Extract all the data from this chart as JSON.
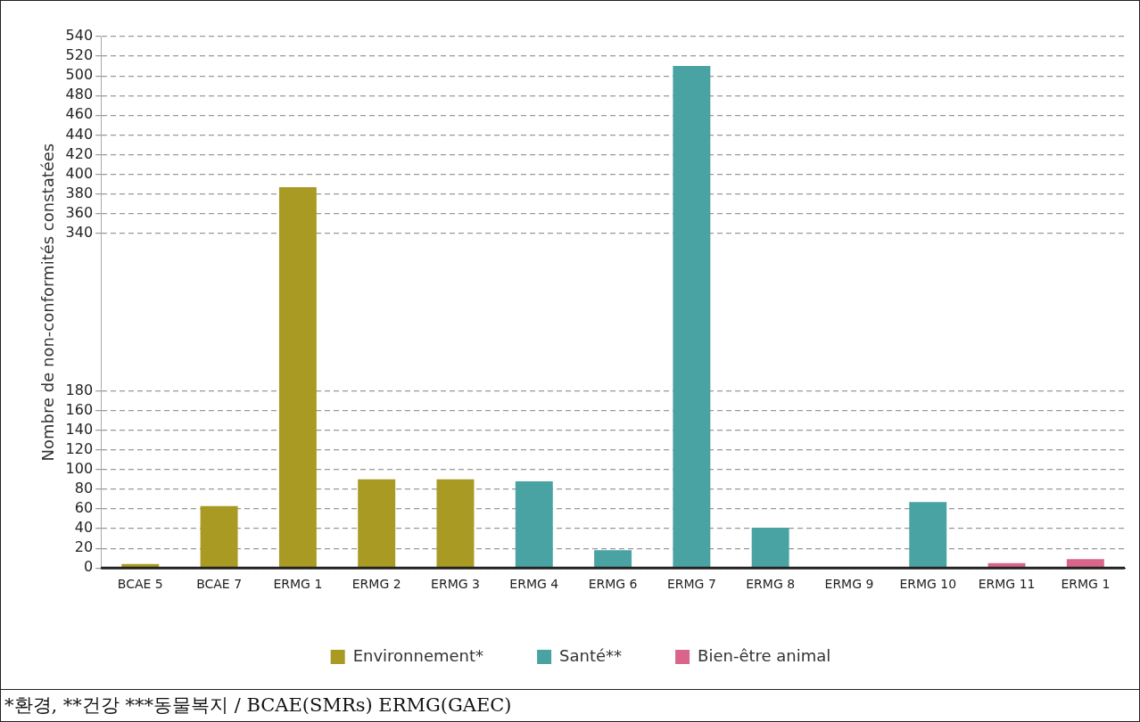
{
  "chart_data": {
    "type": "bar",
    "ylabel": "Nombre de non-conformités constatées",
    "categories": [
      "BCAE 5",
      "BCAE 7",
      "ERMG 1",
      "ERMG 2",
      "ERMG 3",
      "ERMG 4",
      "ERMG 6",
      "ERMG 7",
      "ERMG 8",
      "ERMG 9",
      "ERMG 10",
      "ERMG 11",
      "ERMG 1"
    ],
    "series": [
      {
        "name": "Environnement*",
        "color": "#a89a22",
        "values": [
          4,
          63,
          387,
          90,
          90,
          null,
          null,
          null,
          null,
          null,
          null,
          null,
          null
        ]
      },
      {
        "name": "Santé**",
        "color": "#4aa3a3",
        "values": [
          null,
          null,
          null,
          null,
          null,
          88,
          18,
          510,
          41,
          1,
          67,
          null,
          null
        ]
      },
      {
        "name": "Bien-être animal",
        "color": "#d9668a",
        "values": [
          null,
          null,
          null,
          null,
          null,
          null,
          null,
          null,
          null,
          null,
          null,
          5,
          9
        ]
      }
    ],
    "ylim": [
      0,
      540
    ],
    "yticks": [
      0,
      20,
      40,
      60,
      80,
      100,
      120,
      140,
      160,
      180,
      340,
      360,
      380,
      400,
      420,
      440,
      460,
      480,
      500,
      520,
      540
    ],
    "grid": "y",
    "legend": "bottom",
    "annotations": [
      "*환경, **건강 ***동물복지 / BCAE(SMRs) ERMG(GAEC)"
    ]
  }
}
